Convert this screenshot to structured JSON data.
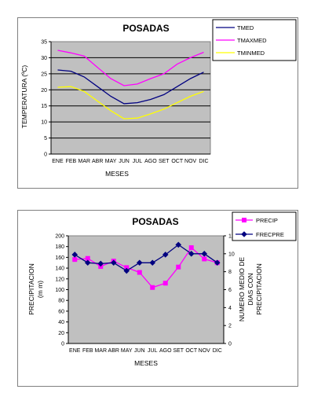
{
  "chart_data": [
    {
      "type": "line",
      "title": "POSADAS",
      "xlabel": "MESES",
      "ylabel": "TEMPERATURA (ºC)",
      "categories": [
        "ENE",
        "FEB",
        "MAR",
        "ABR",
        "MAY",
        "JUN",
        "JUL",
        "AGO",
        "SET",
        "OCT",
        "NOV",
        "DIC"
      ],
      "ylim": [
        0,
        35
      ],
      "yticks": [
        "0",
        "5",
        "10",
        "15",
        "20",
        "25",
        "30",
        "35"
      ],
      "grid": true,
      "legend_position": "top-right",
      "series": [
        {
          "name": "TMED",
          "color": "#000080",
          "values": [
            26.2,
            25.8,
            24.0,
            21.0,
            18.0,
            15.7,
            16.0,
            17.0,
            18.5,
            21.0,
            23.5,
            25.5
          ]
        },
        {
          "name": "TMAXMED",
          "color": "#ff00ff",
          "values": [
            32.3,
            31.5,
            30.5,
            27.0,
            23.5,
            21.3,
            21.8,
            23.5,
            25.0,
            28.0,
            30.0,
            31.7
          ]
        },
        {
          "name": "TMINMED",
          "color": "#ffff00",
          "values": [
            20.8,
            21.0,
            19.5,
            16.5,
            13.5,
            11.0,
            11.2,
            12.5,
            14.0,
            16.0,
            18.0,
            19.5
          ]
        }
      ]
    },
    {
      "type": "line",
      "title": "POSADAS",
      "xlabel": "MESES",
      "ylabel": "PRECIPITACION (m m)",
      "y2label": "NUMERO MEDIO DE DIAS CON PRECIPITACION",
      "categories": [
        "ENE",
        "FEB",
        "MAR",
        "ABR",
        "MAY",
        "JUN",
        "JUL",
        "AGO",
        "SET",
        "OCT",
        "NOV",
        "DIC"
      ],
      "ylim": [
        0,
        200
      ],
      "yticks": [
        "0",
        "20",
        "40",
        "60",
        "80",
        "100",
        "120",
        "140",
        "160",
        "180",
        "200"
      ],
      "y2lim": [
        0,
        12
      ],
      "y2ticks": [
        "0",
        "2",
        "4",
        "6",
        "8",
        "10",
        "12"
      ],
      "grid": false,
      "legend_position": "top-right",
      "series": [
        {
          "name": "PRECIP",
          "color": "#ff00ff",
          "marker": "square",
          "axis": "left",
          "values": [
            156,
            158,
            143,
            153,
            141,
            132,
            104,
            112,
            142,
            178,
            157,
            150
          ]
        },
        {
          "name": "FRECPRE",
          "color": "#000080",
          "marker": "diamond",
          "axis": "right",
          "values": [
            9.9,
            9.0,
            8.9,
            9.0,
            8.1,
            9.0,
            9.0,
            9.9,
            11.0,
            10.0,
            10.0,
            9.0
          ]
        }
      ]
    }
  ]
}
